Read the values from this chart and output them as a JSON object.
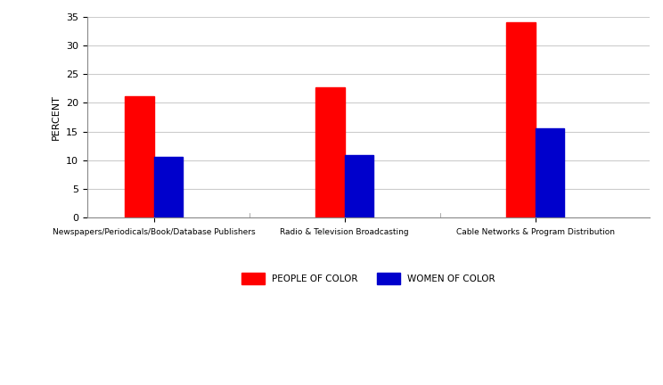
{
  "categories": [
    "Newspapers/Periodicals/Book/Database Publishers",
    "Radio & Television Broadcasting",
    "Cable Networks & Program Distribution"
  ],
  "people_of_color": [
    21.1,
    22.7,
    34.1
  ],
  "women_of_color": [
    10.5,
    10.9,
    15.6
  ],
  "bar_color_people": "#ff0000",
  "bar_color_women": "#0000cc",
  "ylabel": "PERCENT",
  "ylim": [
    0,
    35
  ],
  "yticks": [
    0,
    5,
    10,
    15,
    20,
    25,
    30,
    35
  ],
  "legend_people": "PEOPLE OF COLOR",
  "legend_women": "WOMEN OF COLOR",
  "background_color": "#ffffff",
  "grid_color": "#cccccc",
  "bar_width": 0.3,
  "group_positions": [
    1,
    3,
    5
  ]
}
